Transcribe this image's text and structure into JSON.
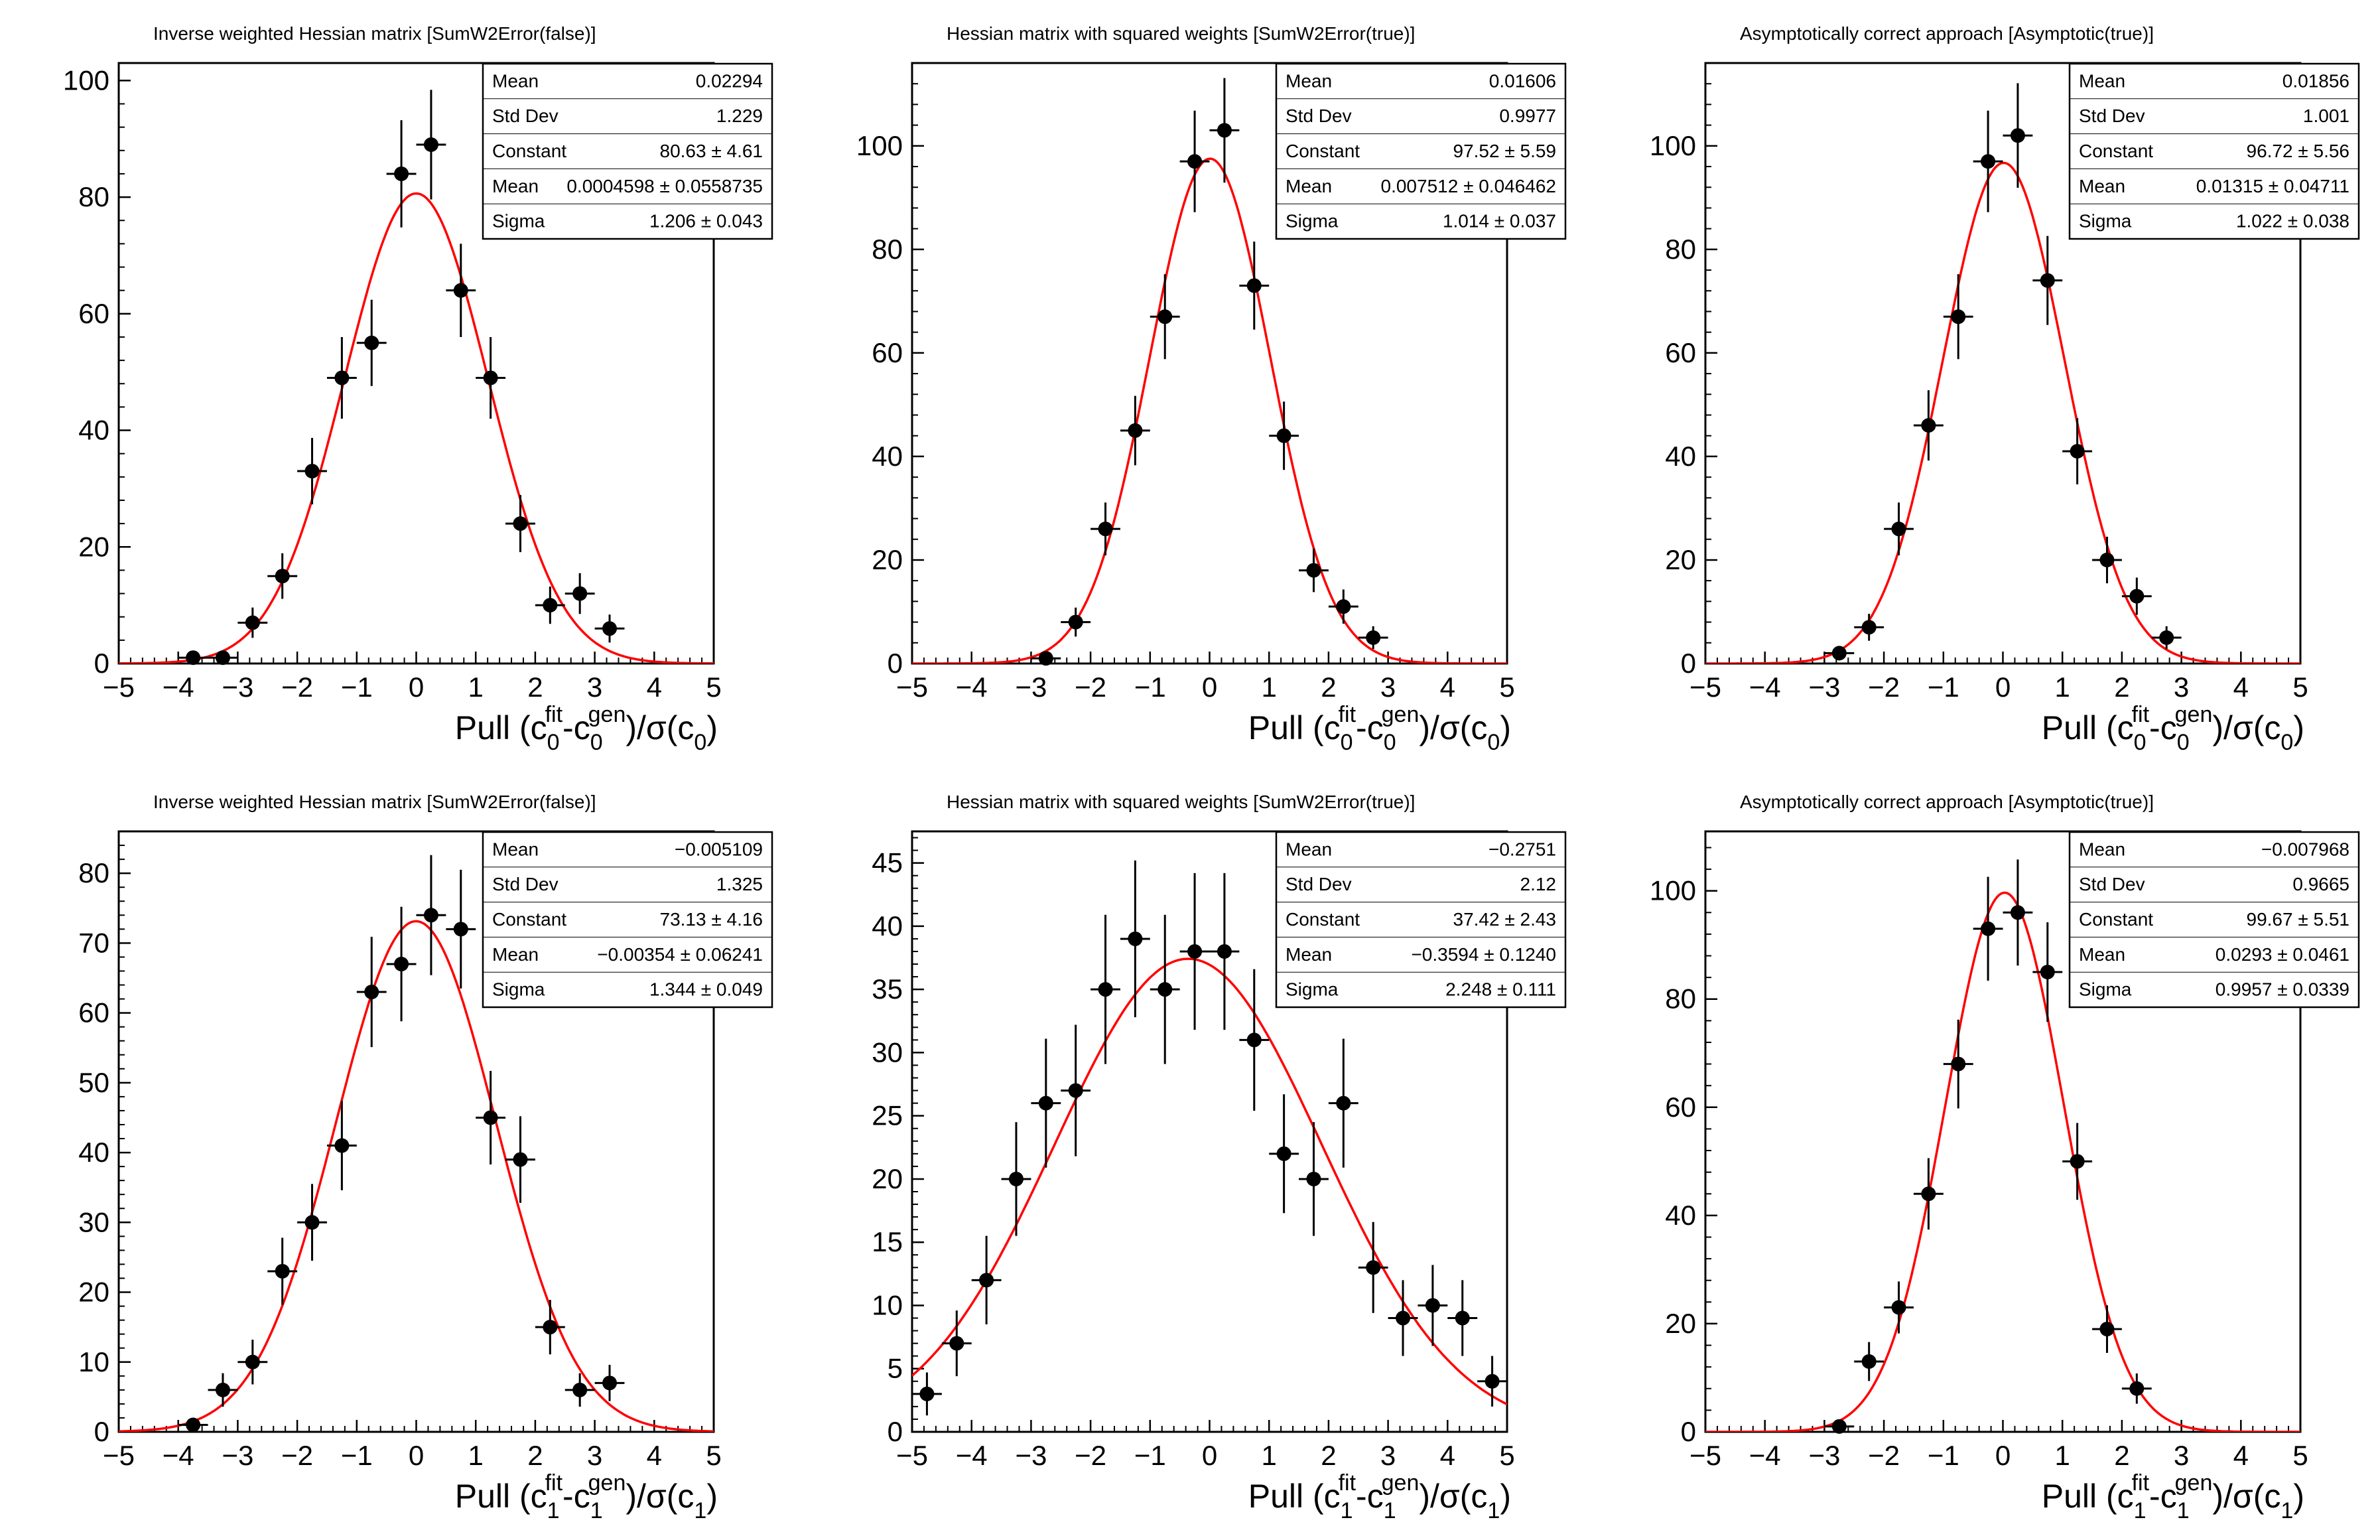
{
  "colors": {
    "background": "#ffffff",
    "frame": "#000000",
    "text": "#000000",
    "curve": "#ff0000",
    "marker": "#000000",
    "stats_bg": "#ffffff"
  },
  "chart_data": [
    {
      "type": "scatter",
      "id": "pull-c0-sumw2-false",
      "title": "Inverse weighted Hessian matrix [SumW2Error(false)]",
      "xlabel_parts": [
        {
          "t": "Pull (c"
        },
        {
          "t": "0",
          "s": "sub"
        },
        {
          "t": "fit",
          "s": "sup"
        },
        {
          "t": "-c"
        },
        {
          "t": "0",
          "s": "sub"
        },
        {
          "t": "gen",
          "s": "sup"
        },
        {
          "t": ")/σ(c"
        },
        {
          "t": "0",
          "s": "sub"
        },
        {
          "t": ")"
        }
      ],
      "xlim": [
        -5,
        5
      ],
      "ylim": [
        0,
        103
      ],
      "xticks": [
        -5,
        -4,
        -3,
        -2,
        -1,
        0,
        1,
        2,
        3,
        4,
        5
      ],
      "yticks": [
        0,
        20,
        40,
        60,
        80,
        100
      ],
      "x_minor_step": 0.2,
      "y_minor_step": 4,
      "fit": {
        "type": "gaussian",
        "constant": 80.63,
        "mean": 0.0004598,
        "sigma": 1.206
      },
      "points": {
        "x": [
          -3.75,
          -3.25,
          -2.75,
          -2.25,
          -1.75,
          -1.25,
          -0.75,
          -0.25,
          0.25,
          0.75,
          1.25,
          1.75,
          2.25,
          2.75,
          3.25
        ],
        "y": [
          1,
          1,
          7,
          15,
          33,
          49,
          55,
          84,
          89,
          64,
          49,
          24,
          10,
          12,
          6
        ],
        "yerr": [
          1,
          1,
          2.6,
          3.9,
          5.7,
          7,
          7.4,
          9.2,
          9.4,
          8,
          7,
          4.9,
          3.2,
          3.5,
          2.4
        ],
        "xerr": 0.25
      },
      "stats": {
        "rows": [
          {
            "label": "Mean",
            "value": "0.02294"
          },
          {
            "label": "Std Dev",
            "value": "1.229"
          },
          {
            "label": "Constant",
            "value": "80.63 ± 4.61"
          },
          {
            "label": "Mean",
            "value": "0.0004598 ± 0.0558735"
          },
          {
            "label": "Sigma",
            "value": "1.206 ± 0.043"
          }
        ]
      }
    },
    {
      "type": "scatter",
      "id": "pull-c0-sumw2-true",
      "title": "Hessian matrix with squared weights [SumW2Error(true)]",
      "xlabel_parts": [
        {
          "t": "Pull (c"
        },
        {
          "t": "0",
          "s": "sub"
        },
        {
          "t": "fit",
          "s": "sup"
        },
        {
          "t": "-c"
        },
        {
          "t": "0",
          "s": "sub"
        },
        {
          "t": "gen",
          "s": "sup"
        },
        {
          "t": ")/σ(c"
        },
        {
          "t": "0",
          "s": "sub"
        },
        {
          "t": ")"
        }
      ],
      "xlim": [
        -5,
        5
      ],
      "ylim": [
        0,
        116
      ],
      "xticks": [
        -5,
        -4,
        -3,
        -2,
        -1,
        0,
        1,
        2,
        3,
        4,
        5
      ],
      "yticks": [
        0,
        20,
        40,
        60,
        80,
        100
      ],
      "x_minor_step": 0.2,
      "y_minor_step": 4,
      "fit": {
        "type": "gaussian",
        "constant": 97.52,
        "mean": 0.007512,
        "sigma": 1.014
      },
      "points": {
        "x": [
          -2.75,
          -2.25,
          -1.75,
          -1.25,
          -0.75,
          -0.25,
          0.25,
          0.75,
          1.25,
          1.75,
          2.25,
          2.75
        ],
        "y": [
          1,
          8,
          26,
          45,
          67,
          97,
          103,
          73,
          44,
          18,
          11,
          5
        ],
        "yerr": [
          1,
          2.8,
          5.1,
          6.7,
          8.2,
          9.8,
          10.1,
          8.5,
          6.6,
          4.2,
          3.3,
          2.2
        ],
        "xerr": 0.25
      },
      "stats": {
        "rows": [
          {
            "label": "Mean",
            "value": "0.01606"
          },
          {
            "label": "Std Dev",
            "value": "0.9977"
          },
          {
            "label": "Constant",
            "value": "97.52 ± 5.59"
          },
          {
            "label": "Mean",
            "value": "0.007512 ± 0.046462"
          },
          {
            "label": "Sigma",
            "value": "1.014 ± 0.037"
          }
        ]
      }
    },
    {
      "type": "scatter",
      "id": "pull-c0-asymptotic",
      "title": "Asymptotically correct approach [Asymptotic(true)]",
      "xlabel_parts": [
        {
          "t": "Pull (c"
        },
        {
          "t": "0",
          "s": "sub"
        },
        {
          "t": "fit",
          "s": "sup"
        },
        {
          "t": "-c"
        },
        {
          "t": "0",
          "s": "sub"
        },
        {
          "t": "gen",
          "s": "sup"
        },
        {
          "t": ")/σ(c"
        },
        {
          "t": "0",
          "s": "sub"
        },
        {
          "t": ")"
        }
      ],
      "xlim": [
        -5,
        5
      ],
      "ylim": [
        0,
        116
      ],
      "xticks": [
        -5,
        -4,
        -3,
        -2,
        -1,
        0,
        1,
        2,
        3,
        4,
        5
      ],
      "yticks": [
        0,
        20,
        40,
        60,
        80,
        100
      ],
      "x_minor_step": 0.2,
      "y_minor_step": 4,
      "fit": {
        "type": "gaussian",
        "constant": 96.72,
        "mean": 0.01315,
        "sigma": 1.022
      },
      "points": {
        "x": [
          -2.75,
          -2.25,
          -1.75,
          -1.25,
          -0.75,
          -0.25,
          0.25,
          0.75,
          1.25,
          1.75,
          2.25,
          2.75
        ],
        "y": [
          2,
          7,
          26,
          46,
          67,
          97,
          102,
          74,
          41,
          20,
          13,
          5
        ],
        "yerr": [
          1.4,
          2.6,
          5.1,
          6.8,
          8.2,
          9.8,
          10.1,
          8.6,
          6.4,
          4.5,
          3.6,
          2.2
        ],
        "xerr": 0.25
      },
      "stats": {
        "rows": [
          {
            "label": "Mean",
            "value": "0.01856"
          },
          {
            "label": "Std Dev",
            "value": "1.001"
          },
          {
            "label": "Constant",
            "value": "96.72 ± 5.56"
          },
          {
            "label": "Mean",
            "value": "0.01315 ± 0.04711"
          },
          {
            "label": "Sigma",
            "value": "1.022 ± 0.038"
          }
        ]
      }
    },
    {
      "type": "scatter",
      "id": "pull-c1-sumw2-false",
      "title": "Inverse weighted Hessian matrix [SumW2Error(false)]",
      "xlabel_parts": [
        {
          "t": "Pull (c"
        },
        {
          "t": "1",
          "s": "sub"
        },
        {
          "t": "fit",
          "s": "sup"
        },
        {
          "t": "-c"
        },
        {
          "t": "1",
          "s": "sub"
        },
        {
          "t": "gen",
          "s": "sup"
        },
        {
          "t": ")/σ(c"
        },
        {
          "t": "1",
          "s": "sub"
        },
        {
          "t": ")"
        }
      ],
      "xlim": [
        -5,
        5
      ],
      "ylim": [
        0,
        86
      ],
      "xticks": [
        -5,
        -4,
        -3,
        -2,
        -1,
        0,
        1,
        2,
        3,
        4,
        5
      ],
      "yticks": [
        0,
        10,
        20,
        30,
        40,
        50,
        60,
        70,
        80
      ],
      "x_minor_step": 0.2,
      "y_minor_step": 2,
      "fit": {
        "type": "gaussian",
        "constant": 73.13,
        "mean": -0.00354,
        "sigma": 1.344
      },
      "points": {
        "x": [
          -3.75,
          -3.25,
          -2.75,
          -2.25,
          -1.75,
          -1.25,
          -0.75,
          -0.25,
          0.25,
          0.75,
          1.25,
          1.75,
          2.25,
          2.75,
          3.25
        ],
        "y": [
          1,
          6,
          10,
          23,
          30,
          41,
          63,
          67,
          74,
          72,
          45,
          39,
          15,
          6,
          7
        ],
        "yerr": [
          1,
          2.4,
          3.2,
          4.8,
          5.5,
          6.4,
          7.9,
          8.2,
          8.6,
          8.5,
          6.7,
          6.2,
          3.9,
          2.4,
          2.6
        ],
        "xerr": 0.25
      },
      "stats": {
        "rows": [
          {
            "label": "Mean",
            "value": "−0.005109"
          },
          {
            "label": "Std Dev",
            "value": "1.325"
          },
          {
            "label": "Constant",
            "value": "73.13 ± 4.16"
          },
          {
            "label": "Mean",
            "value": "−0.00354 ± 0.06241"
          },
          {
            "label": "Sigma",
            "value": "1.344 ± 0.049"
          }
        ]
      }
    },
    {
      "type": "scatter",
      "id": "pull-c1-sumw2-true",
      "title": "Hessian matrix with squared weights [SumW2Error(true)]",
      "xlabel_parts": [
        {
          "t": "Pull (c"
        },
        {
          "t": "1",
          "s": "sub"
        },
        {
          "t": "fit",
          "s": "sup"
        },
        {
          "t": "-c"
        },
        {
          "t": "1",
          "s": "sub"
        },
        {
          "t": "gen",
          "s": "sup"
        },
        {
          "t": ")/σ(c"
        },
        {
          "t": "1",
          "s": "sub"
        },
        {
          "t": ")"
        }
      ],
      "xlim": [
        -5,
        5
      ],
      "ylim": [
        0,
        47.5
      ],
      "xticks": [
        -5,
        -4,
        -3,
        -2,
        -1,
        0,
        1,
        2,
        3,
        4,
        5
      ],
      "yticks": [
        0,
        5,
        10,
        15,
        20,
        25,
        30,
        35,
        40,
        45
      ],
      "x_minor_step": 0.2,
      "y_minor_step": 1,
      "fit": {
        "type": "gaussian",
        "constant": 37.42,
        "mean": -0.3594,
        "sigma": 2.248
      },
      "points": {
        "x": [
          -4.75,
          -4.25,
          -3.75,
          -3.25,
          -2.75,
          -2.25,
          -1.75,
          -1.25,
          -0.75,
          -0.25,
          0.25,
          0.75,
          1.25,
          1.75,
          2.25,
          2.75,
          3.25,
          3.75,
          4.25,
          4.75
        ],
        "y": [
          3,
          7,
          12,
          20,
          26,
          27,
          35,
          39,
          35,
          38,
          38,
          31,
          22,
          20,
          26,
          13,
          9,
          10,
          9,
          4
        ],
        "yerr": [
          1.7,
          2.6,
          3.5,
          4.5,
          5.1,
          5.2,
          5.9,
          6.2,
          5.9,
          6.2,
          6.2,
          5.6,
          4.7,
          4.5,
          5.1,
          3.6,
          3,
          3.2,
          3,
          2
        ],
        "xerr": 0.25
      },
      "stats": {
        "rows": [
          {
            "label": "Mean",
            "value": "−0.2751"
          },
          {
            "label": "Std Dev",
            "value": "2.12"
          },
          {
            "label": "Constant",
            "value": "37.42 ± 2.43"
          },
          {
            "label": "Mean",
            "value": "−0.3594 ± 0.1240"
          },
          {
            "label": "Sigma",
            "value": "2.248 ± 0.111"
          }
        ]
      }
    },
    {
      "type": "scatter",
      "id": "pull-c1-asymptotic",
      "title": "Asymptotically correct approach [Asymptotic(true)]",
      "xlabel_parts": [
        {
          "t": "Pull (c"
        },
        {
          "t": "1",
          "s": "sub"
        },
        {
          "t": "fit",
          "s": "sup"
        },
        {
          "t": "-c"
        },
        {
          "t": "1",
          "s": "sub"
        },
        {
          "t": "gen",
          "s": "sup"
        },
        {
          "t": ")/σ(c"
        },
        {
          "t": "1",
          "s": "sub"
        },
        {
          "t": ")"
        }
      ],
      "xlim": [
        -5,
        5
      ],
      "ylim": [
        0,
        111
      ],
      "xticks": [
        -5,
        -4,
        -3,
        -2,
        -1,
        0,
        1,
        2,
        3,
        4,
        5
      ],
      "yticks": [
        0,
        20,
        40,
        60,
        80,
        100
      ],
      "x_minor_step": 0.2,
      "y_minor_step": 4,
      "fit": {
        "type": "gaussian",
        "constant": 99.67,
        "mean": 0.0293,
        "sigma": 0.9957
      },
      "points": {
        "x": [
          -2.75,
          -2.25,
          -1.75,
          -1.25,
          -0.75,
          -0.25,
          0.25,
          0.75,
          1.25,
          1.75,
          2.25
        ],
        "y": [
          1,
          13,
          23,
          44,
          68,
          93,
          96,
          85,
          50,
          19,
          8
        ],
        "yerr": [
          1,
          3.6,
          4.8,
          6.6,
          8.2,
          9.6,
          9.8,
          9.2,
          7.1,
          4.4,
          2.8
        ],
        "xerr": 0.25
      },
      "stats": {
        "rows": [
          {
            "label": "Mean",
            "value": "−0.007968"
          },
          {
            "label": "Std Dev",
            "value": "0.9665"
          },
          {
            "label": "Constant",
            "value": "99.67 ± 5.51"
          },
          {
            "label": "Mean",
            "value": "0.0293 ± 0.0461"
          },
          {
            "label": "Sigma",
            "value": "0.9957 ± 0.0339"
          }
        ]
      }
    }
  ]
}
